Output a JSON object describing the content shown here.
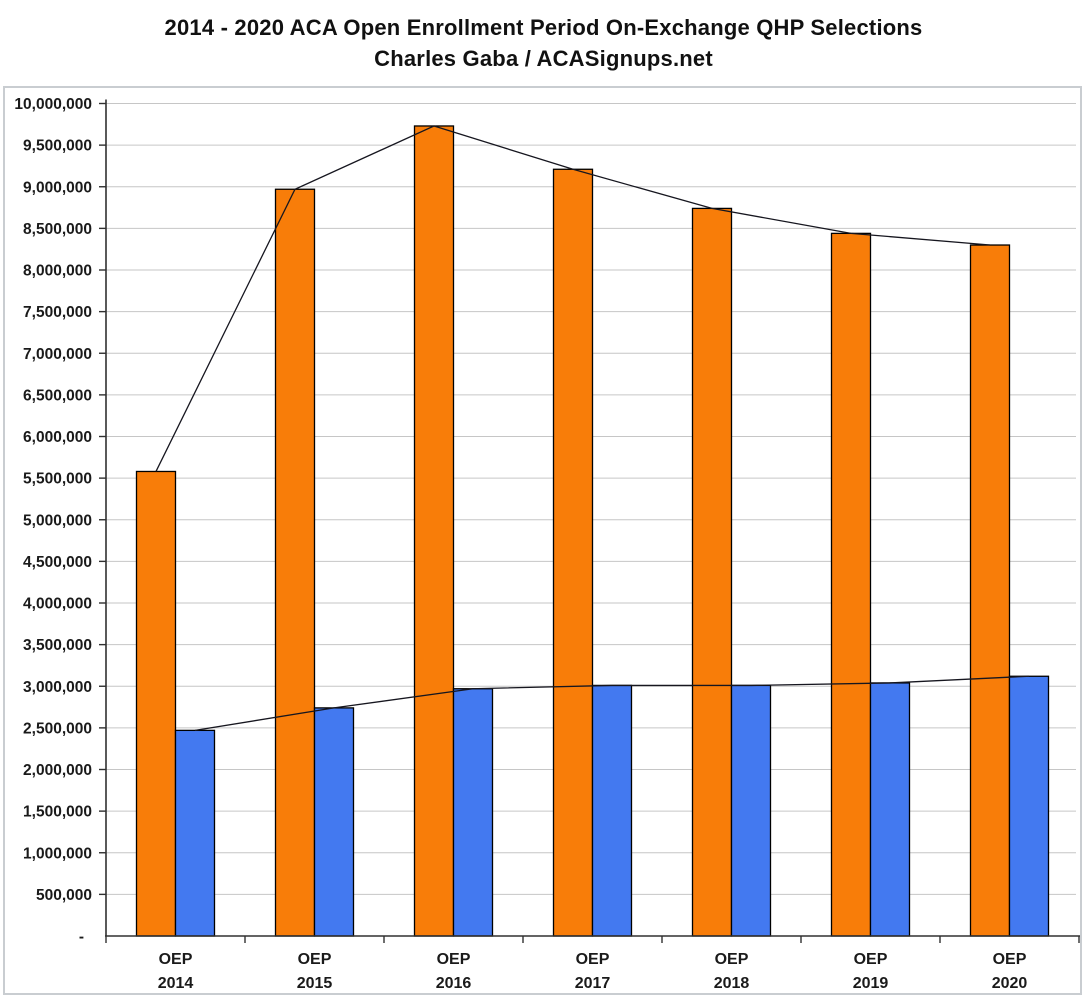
{
  "title": {
    "line1": "2014 - 2020 ACA Open Enrollment Period On-Exchange QHP Selections",
    "line2": "Charles Gaba / ACASignups.net"
  },
  "chart_data": {
    "type": "bar",
    "title": "2014 - 2020 ACA Open Enrollment Period On-Exchange QHP Selections",
    "subtitle": "Charles Gaba / ACASignups.net",
    "categories": [
      "OEP 2014",
      "OEP 2015",
      "OEP 2016",
      "OEP 2017",
      "OEP 2018",
      "OEP 2019",
      "OEP 2020"
    ],
    "category_label_top": "OEP",
    "category_years": [
      "2014",
      "2015",
      "2016",
      "2017",
      "2018",
      "2019",
      "2020"
    ],
    "series": [
      {
        "name": "orange-bars",
        "color": "#F87D09",
        "values": [
          5580000,
          8970000,
          9730000,
          9210000,
          8740000,
          8440000,
          8300000
        ]
      },
      {
        "name": "blue-bars",
        "color": "#4379F0",
        "values": [
          2470000,
          2740000,
          2970000,
          3010000,
          3010000,
          3040000,
          3120000
        ]
      }
    ],
    "line_overlays": "thin black line traces the bar tops of each series",
    "ylim": [
      0,
      10000000
    ],
    "y_tick_step": 500000,
    "y_zero_label": "-",
    "grid": true,
    "legend": "none"
  },
  "colors": {
    "orange_bar": "#F87D09",
    "blue_bar": "#4379F0",
    "gridline": "#C6C6C6",
    "axis": "#303030",
    "bar_outline": "#000000",
    "trend_line": "#16161F",
    "outer_border": "#C9CDD1",
    "text": "#1A1A1A"
  }
}
